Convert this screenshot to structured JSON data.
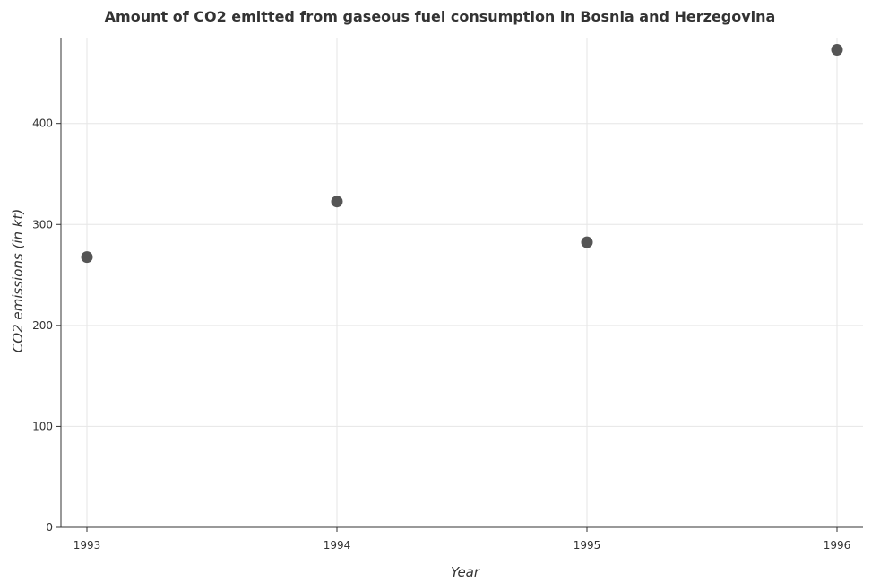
{
  "chart_data": {
    "type": "scatter",
    "title": "Amount of CO2 emitted from gaseous fuel consumption in Bosnia and Herzegovina",
    "xlabel": "Year",
    "ylabel": "CO2 emissions (in kt)",
    "categories": [
      "1993",
      "1994",
      "1995",
      "1996"
    ],
    "values": [
      267.7,
      322.7,
      282.4,
      473.0
    ],
    "ylim": [
      0,
      485
    ],
    "yticks": [
      0,
      100,
      200,
      300,
      400
    ],
    "grid": true,
    "marker_color": "#555555"
  }
}
